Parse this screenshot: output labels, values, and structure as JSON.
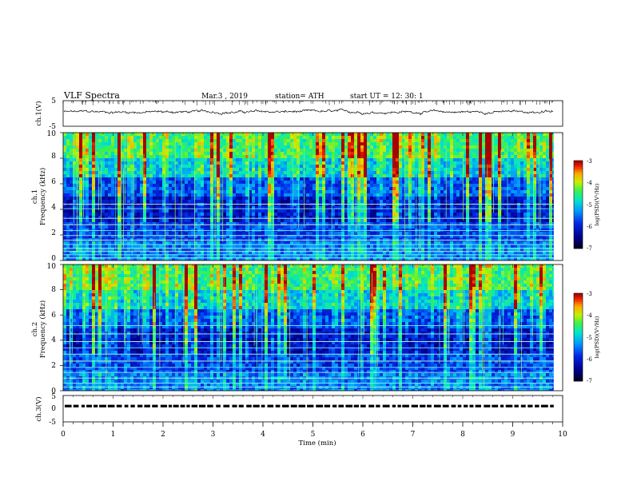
{
  "header": {
    "title": "VLF  Spectra",
    "date": "Mar.3  , 2019",
    "station": "station= ATH",
    "start_ut": "start  UT  =   12: 30: 1"
  },
  "chart_data": {
    "type": "heatmap",
    "title": "VLF  Spectra",
    "x": {
      "label": "Time  (min)",
      "range": [
        0,
        10
      ],
      "ticks": [
        "0",
        "1",
        "2",
        "3",
        "4",
        "5",
        "6",
        "7",
        "8",
        "9",
        "10"
      ],
      "data_end": 9.82
    },
    "panels": [
      {
        "name": "ch1-waveform",
        "type": "line",
        "ylabel": "ch.1(V)",
        "ylim": [
          -5,
          5
        ],
        "yticks": [
          "5",
          "-5"
        ],
        "baseline": 0.6
      },
      {
        "name": "ch1-spectrogram",
        "type": "heatmap",
        "ylabel_channel": "ch.1",
        "ylabel": "Frequency  (kHz)",
        "ylim": [
          0,
          10
        ],
        "yticks": [
          "0",
          "2",
          "4",
          "6",
          "8",
          "10"
        ],
        "colorbar": {
          "label": "log(PSD)(V²/Hz)",
          "range": [
            -7,
            -3
          ],
          "ticks": [
            "-3",
            "-4",
            "-5",
            "-6",
            "-7"
          ]
        },
        "bands_khz": [
          0.2,
          0.45,
          0.7,
          0.95,
          1.25,
          1.6,
          1.95,
          2.35,
          2.8,
          3.3,
          4.05,
          4.4
        ]
      },
      {
        "name": "ch2-spectrogram",
        "type": "heatmap",
        "ylabel_channel": "ch.2",
        "ylabel": "Frequency  (kHz)",
        "ylim": [
          0,
          10
        ],
        "yticks": [
          "0",
          "2",
          "4",
          "6",
          "8",
          "10"
        ],
        "colorbar": {
          "label": "log(PSD)(V²/Hz)",
          "range": [
            -7,
            -3
          ],
          "ticks": [
            "-3",
            "-4",
            "-5",
            "-6",
            "-7"
          ]
        },
        "bands_khz": [
          0.3,
          0.6,
          1.0,
          1.45,
          1.85,
          2.35,
          2.9,
          3.4,
          3.9,
          4.5,
          5.15
        ]
      },
      {
        "name": "ch3-waveform",
        "type": "line",
        "ylabel": "ch.3(V)",
        "ylim": [
          -5,
          5
        ],
        "yticks": [
          "5",
          "0",
          "-5"
        ],
        "baseline": 1.0
      }
    ]
  }
}
